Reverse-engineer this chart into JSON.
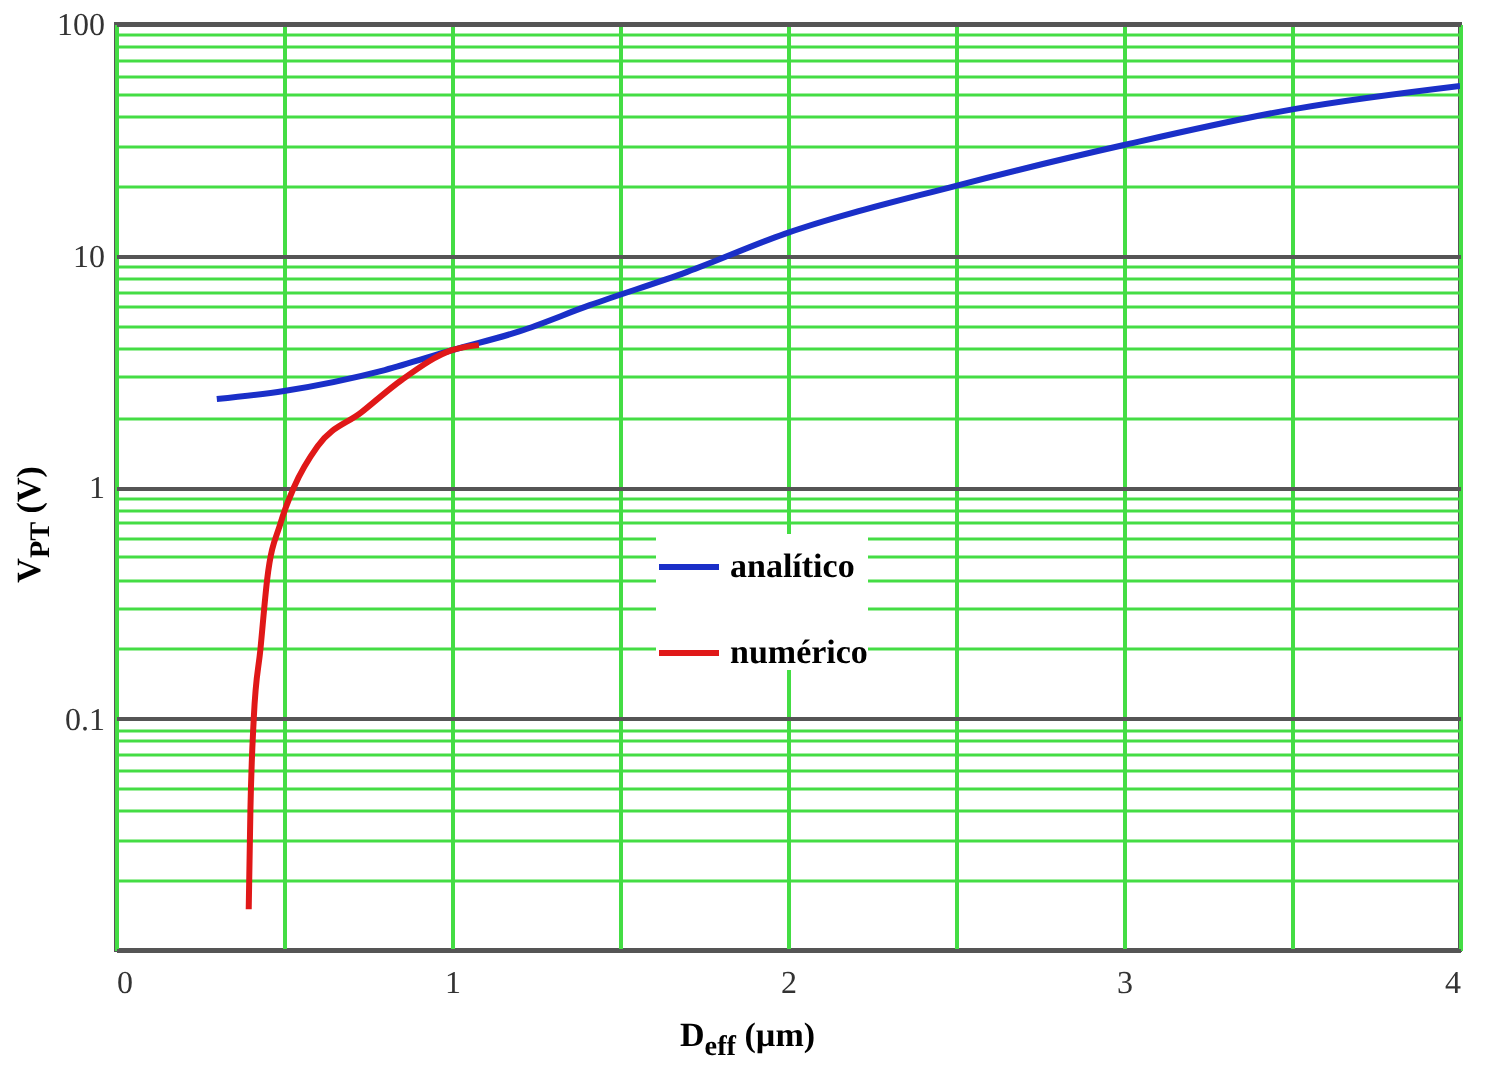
{
  "chart_data": {
    "type": "line",
    "xlabel": "D$_{eff}$ (µm)",
    "ylabel": "V$_{PT}$ (V)",
    "log": "y",
    "grid": true,
    "legend": "center",
    "xlim": [
      0,
      4
    ],
    "xticks": [
      0,
      {
        "value": 0.5,
        "label": null
      },
      1,
      {
        "value": 1.5,
        "label": null
      },
      2,
      {
        "value": 2.5,
        "label": null
      },
      3,
      {
        "value": 3.5,
        "label": null
      },
      4
    ],
    "ylim": [
      0.01,
      100
    ],
    "yticks": [
      {
        "value": 0.01,
        "label": null
      },
      {
        "value": 0.02,
        "label": null
      },
      {
        "value": 0.03,
        "label": null
      },
      {
        "value": 0.04,
        "label": null
      },
      {
        "value": 0.05,
        "label": null
      },
      {
        "value": 0.06,
        "label": null
      },
      {
        "value": 0.07,
        "label": null
      },
      {
        "value": 0.08,
        "label": null
      },
      {
        "value": 0.09,
        "label": null
      },
      0.1,
      {
        "value": 0.2,
        "label": null
      },
      {
        "value": 0.3,
        "label": null
      },
      {
        "value": 0.4,
        "label": null
      },
      {
        "value": 0.5,
        "label": null
      },
      {
        "value": 0.6,
        "label": null
      },
      {
        "value": 0.7,
        "label": null
      },
      {
        "value": 0.8,
        "label": null
      },
      {
        "value": 0.9,
        "label": null
      },
      1,
      {
        "value": 2,
        "label": null
      },
      {
        "value": 3,
        "label": null
      },
      {
        "value": 4,
        "label": null
      },
      {
        "value": 5,
        "label": null
      },
      {
        "value": 6,
        "label": null
      },
      {
        "value": 7,
        "label": null
      },
      {
        "value": 8,
        "label": null
      },
      {
        "value": 9,
        "label": null
      },
      10,
      {
        "value": 20,
        "label": null
      },
      {
        "value": 30,
        "label": null
      },
      {
        "value": 40,
        "label": null
      },
      {
        "value": 50,
        "label": null
      },
      {
        "value": 60,
        "label": null
      },
      {
        "value": 70,
        "label": null
      },
      {
        "value": 80,
        "label": null
      },
      {
        "value": 90,
        "label": null
      },
      100
    ],
    "series": [
      {
        "name": "analítico",
        "color": "#1a2fc8",
        "x": [
          0.3,
          0.5,
          0.8,
          1.0,
          1.2,
          1.41,
          1.7,
          1.99,
          2.5,
          3.0,
          3.51,
          4.0
        ],
        "values": [
          2.4,
          2.6,
          3.2,
          3.9,
          4.7,
          6.1,
          8.5,
          12.4,
          20,
          30,
          43,
          54
        ]
      },
      {
        "name": "numérico",
        "color": "#e01818",
        "x": [
          0.395,
          0.4,
          0.41,
          0.43,
          0.45,
          0.49,
          0.53,
          0.6,
          0.73,
          0.85,
          1.0,
          1.08
        ],
        "values": [
          0.015,
          0.04,
          0.1,
          0.2,
          0.4,
          0.7,
          1.0,
          1.5,
          2.1,
          2.9,
          3.9,
          4.1
        ]
      }
    ]
  }
}
